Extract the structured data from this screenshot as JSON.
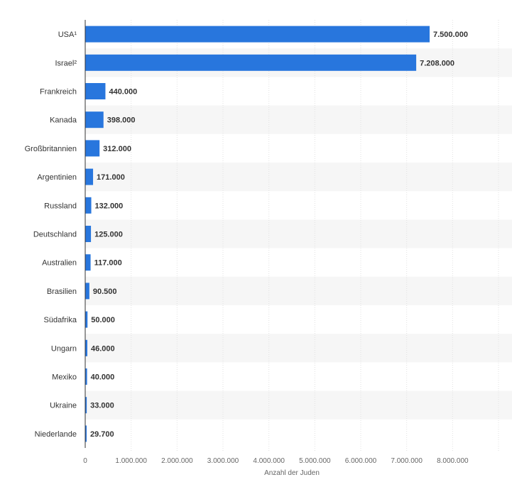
{
  "chart_data": {
    "type": "bar",
    "orientation": "horizontal",
    "categories": [
      "USA¹",
      "Israel²",
      "Frankreich",
      "Kanada",
      "Großbritannien",
      "Argentinien",
      "Russland",
      "Deutschland",
      "Australien",
      "Brasilien",
      "Südafrika",
      "Ungarn",
      "Mexiko",
      "Ukraine",
      "Niederlande"
    ],
    "values": [
      7500000,
      7208000,
      440000,
      398000,
      312000,
      171000,
      132000,
      125000,
      117000,
      90500,
      50000,
      46000,
      40000,
      33000,
      29700
    ],
    "value_labels": [
      "7.500.000",
      "7.208.000",
      "440.000",
      "398.000",
      "312.000",
      "171.000",
      "132.000",
      "125.000",
      "117.000",
      "90.500",
      "50.000",
      "46.000",
      "40.000",
      "33.000",
      "29.700"
    ],
    "xlabel": "Anzahl der Juden",
    "ylabel": "",
    "xlim": [
      0,
      9000000
    ],
    "x_ticks": [
      0,
      1000000,
      2000000,
      3000000,
      4000000,
      5000000,
      6000000,
      7000000,
      8000000
    ],
    "x_tick_labels": [
      "0",
      "1.000.000",
      "2.000.000",
      "3.000.000",
      "4.000.000",
      "5.000.000",
      "6.000.000",
      "7.000.000",
      "8.000.000"
    ],
    "grid": true,
    "colors": {
      "bar": "#2876dd",
      "stripe": "#f6f6f6",
      "grid": "#e2e2e2",
      "axis": "#333333"
    }
  }
}
